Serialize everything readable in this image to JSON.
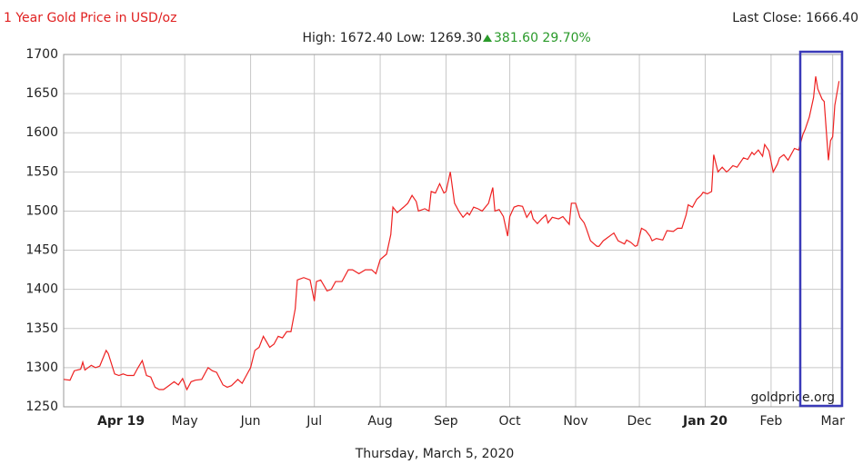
{
  "chart_data": {
    "type": "line",
    "title": "1 Year Gold Price in USD/oz",
    "last_close": "Last Close: 1666.40",
    "high_low": "High: 1672.40 Low: 1269.30",
    "change": "381.60 29.70%",
    "watermark": "goldprice.org",
    "date": "Thursday, March 5, 2020",
    "color": "#ee2222",
    "grid": true,
    "x": [
      0,
      3,
      5,
      8,
      9,
      10,
      13,
      15,
      17,
      20,
      21,
      24,
      26,
      28,
      30,
      33,
      35,
      37,
      39,
      41,
      43,
      45,
      47,
      49,
      52,
      54,
      56,
      58,
      60,
      62,
      65,
      68,
      70,
      72,
      75,
      77,
      79,
      82,
      84,
      86,
      88,
      90,
      92,
      94,
      97,
      99,
      101,
      103,
      105,
      107,
      109,
      110,
      113,
      116,
      118,
      119,
      121,
      124,
      126,
      128,
      131,
      134,
      136,
      139,
      142,
      145,
      147,
      149,
      152,
      154,
      155,
      157,
      160,
      162,
      164,
      166,
      167,
      170,
      172,
      173,
      175,
      177,
      179,
      180,
      182,
      184,
      186,
      188,
      190,
      191,
      193,
      195,
      197,
      200,
      202,
      203,
      205,
      207,
      209,
      210,
      212,
      214,
      216,
      218,
      220,
      221,
      223,
      225,
      227,
      228,
      230,
      233,
      235,
      238,
      239,
      241,
      243,
      245,
      246,
      248,
      251,
      252,
      254,
      256,
      258,
      259,
      261,
      264,
      265,
      267,
      269,
      270,
      272,
      274,
      276,
      277,
      279,
      282,
      284,
      287,
      289,
      291,
      293,
      294,
      296,
      298,
      300,
      301,
      303,
      305,
      306,
      308,
      310,
      312,
      313,
      315,
      317,
      318,
      320,
      322,
      324,
      325,
      327,
      329,
      330,
      332,
      334,
      336,
      337,
      339,
      341,
      342,
      344,
      346,
      348,
      349,
      351,
      353,
      354,
      355,
      357,
      358,
      360,
      361,
      362,
      363,
      365
    ],
    "values": [
      1285,
      1284,
      1296,
      1298,
      1307,
      1297,
      1303,
      1300,
      1302,
      1322,
      1318,
      1292,
      1290,
      1292,
      1290,
      1290,
      1300,
      1309,
      1290,
      1288,
      1275,
      1272,
      1272,
      1276,
      1282,
      1278,
      1286,
      1272,
      1282,
      1284,
      1285,
      1300,
      1296,
      1294,
      1278,
      1275,
      1277,
      1285,
      1280,
      1290,
      1300,
      1322,
      1326,
      1340,
      1326,
      1330,
      1340,
      1338,
      1346,
      1346,
      1375,
      1412,
      1415,
      1412,
      1385,
      1410,
      1412,
      1398,
      1400,
      1410,
      1410,
      1425,
      1425,
      1420,
      1425,
      1425,
      1420,
      1438,
      1445,
      1470,
      1505,
      1498,
      1505,
      1510,
      1520,
      1512,
      1500,
      1503,
      1500,
      1525,
      1523,
      1535,
      1523,
      1525,
      1550,
      1510,
      1500,
      1492,
      1498,
      1495,
      1505,
      1503,
      1500,
      1510,
      1530,
      1500,
      1502,
      1493,
      1468,
      1493,
      1505,
      1507,
      1506,
      1492,
      1500,
      1490,
      1484,
      1490,
      1495,
      1485,
      1492,
      1490,
      1493,
      1483,
      1510,
      1510,
      1492,
      1485,
      1478,
      1462,
      1455,
      1455,
      1462,
      1466,
      1470,
      1472,
      1462,
      1458,
      1463,
      1460,
      1455,
      1456,
      1478,
      1475,
      1468,
      1462,
      1465,
      1463,
      1475,
      1474,
      1478,
      1478,
      1495,
      1508,
      1505,
      1515,
      1520,
      1524,
      1522,
      1525,
      1572,
      1550,
      1556,
      1550,
      1552,
      1558,
      1556,
      1560,
      1568,
      1566,
      1575,
      1572,
      1578,
      1570,
      1585,
      1577,
      1550,
      1560,
      1568,
      1572,
      1565,
      1570,
      1580,
      1578,
      1598,
      1604,
      1620,
      1645,
      1672,
      1656,
      1643,
      1640,
      1565,
      1590,
      1595,
      1635,
      1666
    ],
    "xlim": [
      0,
      366
    ],
    "xticks": [
      {
        "value": 27,
        "label": "Apr 19"
      },
      {
        "value": 57,
        "label": "May"
      },
      {
        "value": 88,
        "label": "Jun"
      },
      {
        "value": 118,
        "label": "Jul"
      },
      {
        "value": 149,
        "label": "Aug"
      },
      {
        "value": 180,
        "label": "Sep"
      },
      {
        "value": 210,
        "label": "Oct"
      },
      {
        "value": 241,
        "label": "Nov"
      },
      {
        "value": 271,
        "label": "Dec"
      },
      {
        "value": 302,
        "label": "Jan 20"
      },
      {
        "value": 333,
        "label": "Feb"
      },
      {
        "value": 362,
        "label": "Mar"
      }
    ],
    "ylim": [
      1250,
      1700
    ],
    "yticks": [
      1250,
      1300,
      1350,
      1400,
      1450,
      1500,
      1550,
      1600,
      1650,
      1700
    ]
  }
}
